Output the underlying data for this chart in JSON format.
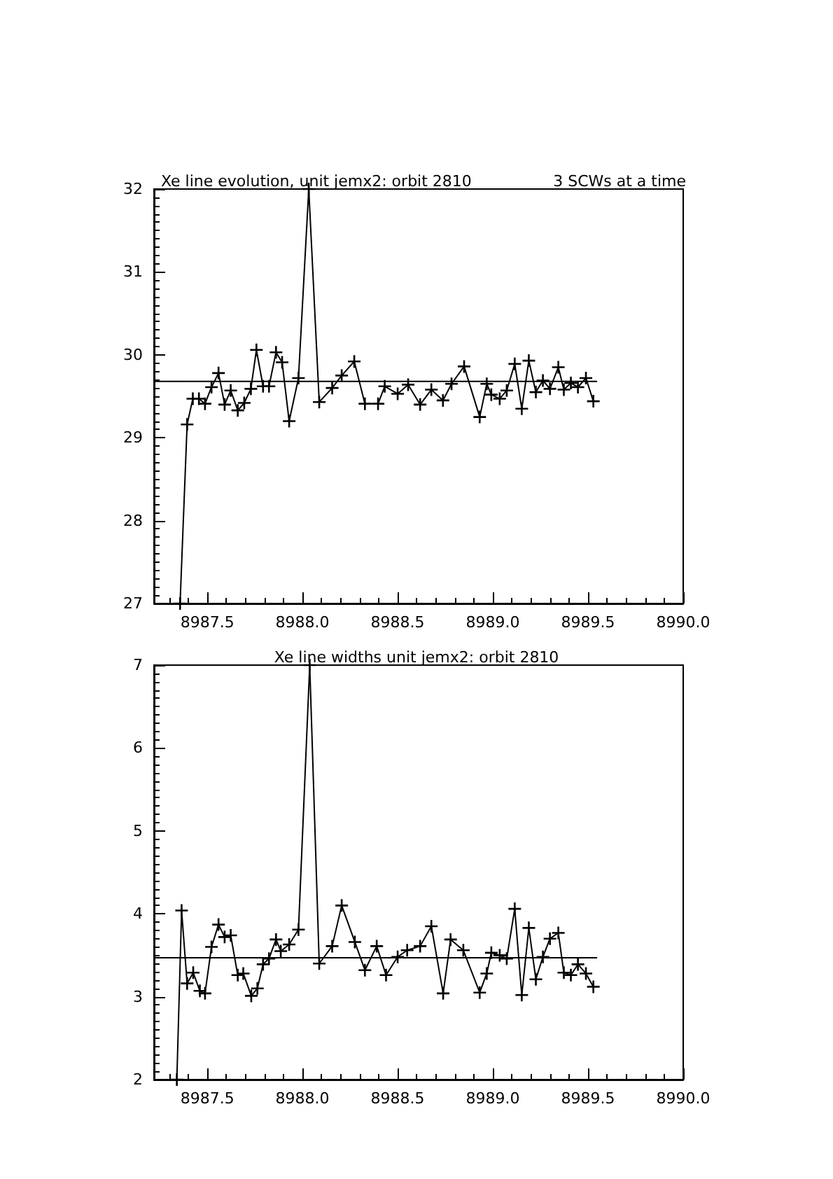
{
  "chart_data": [
    {
      "type": "line",
      "title": "Xe line evolution, unit jemx2: orbit 2810",
      "subtitle": "3 SCWs at a time",
      "marker": "cross",
      "xlim": [
        8987.22,
        8990.0
      ],
      "xticks": [
        8987.5,
        {
          "value": 8988,
          "label": "8988.0"
        },
        8988.5,
        {
          "value": 8989,
          "label": "8989.0"
        },
        8989.5,
        {
          "value": 8990,
          "label": "8990.0"
        }
      ],
      "ylim": [
        27,
        32
      ],
      "yticks": [
        27,
        28,
        29,
        30,
        31,
        32
      ],
      "series": [
        {
          "color": "#000000",
          "x": [
            8987.357,
            8987.394,
            8987.424,
            8987.456,
            8987.488,
            8987.522,
            8987.559,
            8987.591,
            8987.623,
            8987.66,
            8987.694,
            8987.729,
            8987.758,
            8987.793,
            8987.824,
            8987.861,
            8987.893,
            8987.93,
            8987.979,
            8988.033,
            8988.088,
            8988.156,
            8988.206,
            8988.272,
            8988.328,
            8988.397,
            8988.432,
            8988.5,
            8988.555,
            8988.618,
            8988.677,
            8988.738,
            8988.783,
            8988.849,
            8988.931,
            8988.968,
            8988.992,
            8989.036,
            8989.073,
            8989.115,
            8989.152,
            8989.189,
            8989.226,
            8989.263,
            8989.3,
            8989.344,
            8989.373,
            8989.41,
            8989.447,
            8989.489,
            8989.528
          ],
          "values": [
            27.0,
            29.16,
            29.47,
            29.47,
            29.41,
            29.61,
            29.78,
            29.4,
            29.57,
            29.33,
            29.42,
            29.59,
            30.06,
            29.62,
            29.62,
            30.03,
            29.91,
            29.2,
            29.72,
            32.0,
            29.43,
            29.6,
            29.75,
            29.92,
            29.41,
            29.41,
            29.62,
            29.53,
            29.64,
            29.4,
            29.58,
            29.45,
            29.65,
            29.86,
            29.25,
            29.65,
            29.52,
            29.47,
            29.57,
            29.89,
            29.35,
            29.93,
            29.55,
            29.69,
            29.59,
            29.85,
            29.58,
            29.66,
            29.61,
            29.72,
            29.44
          ]
        },
        {
          "color": "#000000",
          "marker": "none",
          "x": [
            8987.22,
            8989.545
          ],
          "values": [
            29.68,
            29.68
          ]
        }
      ]
    },
    {
      "type": "line",
      "title": "Xe line widths unit jemx2: orbit 2810",
      "marker": "cross",
      "xlim": [
        8987.22,
        8990.0
      ],
      "xticks": [
        8987.5,
        {
          "value": 8988,
          "label": "8988.0"
        },
        8988.5,
        {
          "value": 8989,
          "label": "8989.0"
        },
        8989.5,
        {
          "value": 8990,
          "label": "8990.0"
        }
      ],
      "ylim": [
        2,
        7
      ],
      "yticks": [
        2,
        3,
        4,
        5,
        6,
        7
      ],
      "series": [
        {
          "color": "#000000",
          "x": [
            8987.34,
            8987.365,
            8987.394,
            8987.426,
            8987.461,
            8987.488,
            8987.522,
            8987.559,
            8987.591,
            8987.623,
            8987.66,
            8987.689,
            8987.731,
            8987.763,
            8987.793,
            8987.824,
            8987.861,
            8987.886,
            8987.93,
            8987.979,
            8988.038,
            8988.088,
            8988.156,
            8988.206,
            8988.275,
            8988.328,
            8988.39,
            8988.439,
            8988.5,
            8988.55,
            8988.618,
            8988.677,
            8988.739,
            8988.778,
            8988.845,
            8988.931,
            8988.968,
            8988.992,
            8989.036,
            8989.073,
            8989.115,
            8989.152,
            8989.189,
            8989.226,
            8989.263,
            8989.3,
            8989.344,
            8989.373,
            8989.41,
            8989.447,
            8989.489,
            8989.528
          ],
          "values": [
            2.0,
            4.04,
            3.16,
            3.29,
            3.07,
            3.04,
            3.6,
            3.87,
            3.72,
            3.74,
            3.26,
            3.28,
            3.01,
            3.1,
            3.39,
            3.46,
            3.69,
            3.55,
            3.63,
            3.81,
            7.0,
            3.4,
            3.61,
            4.1,
            3.66,
            3.32,
            3.61,
            3.26,
            3.48,
            3.56,
            3.61,
            3.85,
            3.04,
            3.69,
            3.56,
            3.05,
            3.28,
            3.53,
            3.5,
            3.46,
            4.06,
            3.02,
            3.83,
            3.21,
            3.48,
            3.7,
            3.77,
            3.29,
            3.26,
            3.39,
            3.28,
            3.12
          ]
        },
        {
          "color": "#000000",
          "marker": "none",
          "x": [
            8987.22,
            8989.545
          ],
          "values": [
            3.47,
            3.47
          ]
        }
      ]
    }
  ]
}
